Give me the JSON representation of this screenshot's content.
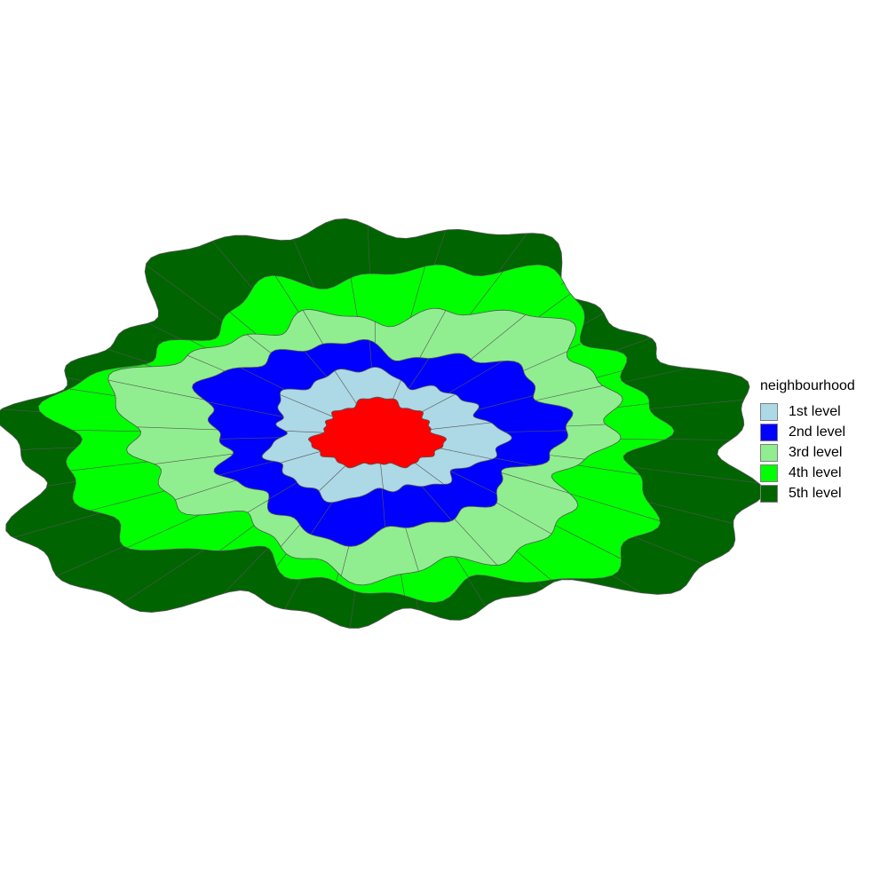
{
  "map": {
    "focus_color": "#ff0000",
    "border_color": "#555555"
  },
  "legend": {
    "title": "neighbourhood",
    "items": [
      {
        "label": "1st level",
        "color": "#add8e6"
      },
      {
        "label": "2nd level",
        "color": "#0000ff"
      },
      {
        "label": "3rd level",
        "color": "#90ee90"
      },
      {
        "label": "4th level",
        "color": "#00ff00"
      },
      {
        "label": "5th level",
        "color": "#006400"
      }
    ]
  }
}
